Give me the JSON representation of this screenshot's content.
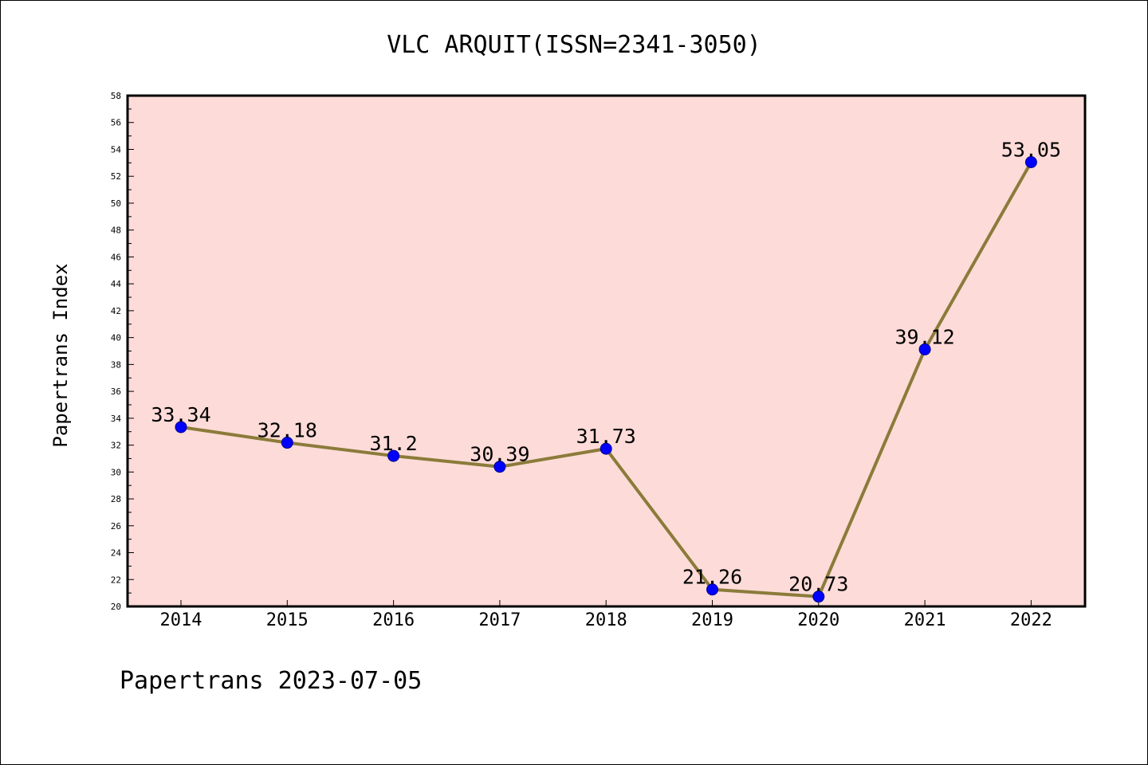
{
  "chart_data": {
    "type": "line",
    "title": "VLC ARQUIT(ISSN=2341-3050)",
    "xlabel": "",
    "ylabel": "Papertrans Index",
    "categories": [
      "2014",
      "2015",
      "2016",
      "2017",
      "2018",
      "2019",
      "2020",
      "2021",
      "2022"
    ],
    "series": [
      {
        "values": [
          33.34,
          32.18,
          31.2,
          30.39,
          31.73,
          21.26,
          20.73,
          39.12,
          53.05
        ],
        "labels": [
          "33.34",
          "32.18",
          "31.2",
          "30.39",
          "31.73",
          "21.26",
          "20.73",
          "39.12",
          "53.05"
        ],
        "line_color": "#8B7B3A",
        "marker_color": "#0000FF"
      }
    ],
    "ylim": [
      20,
      58
    ],
    "yticks": [
      "20",
      "22",
      "24",
      "26",
      "28",
      "30",
      "32",
      "34",
      "36",
      "38",
      "40",
      "42",
      "44",
      "46",
      "48",
      "50",
      "52",
      "54",
      "56",
      "58"
    ],
    "plot_background": "#FDDBD8",
    "grid": false
  },
  "footer": "Papertrans 2023-07-05"
}
